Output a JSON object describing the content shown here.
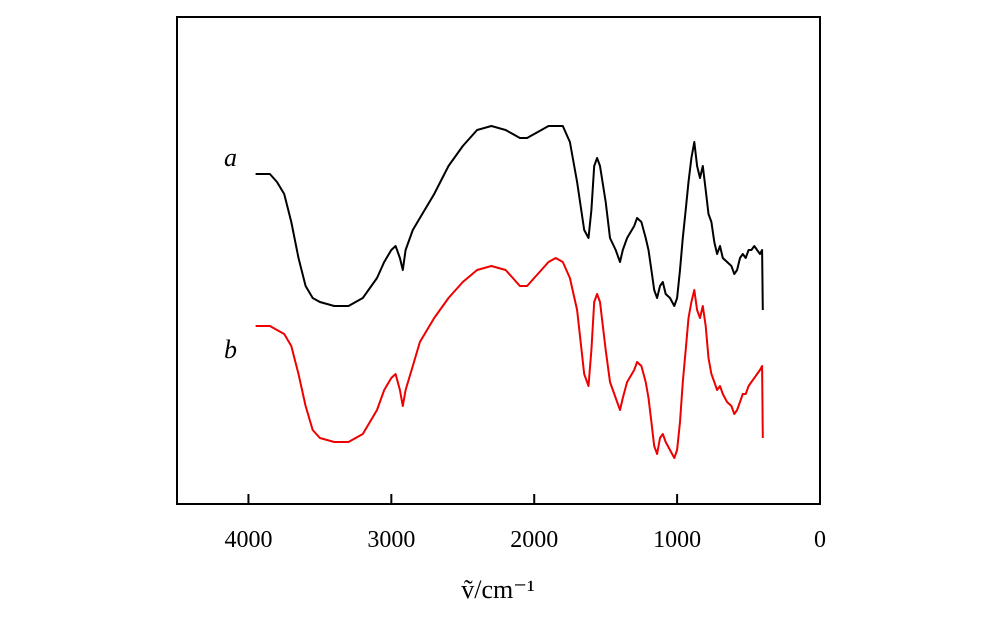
{
  "chart_data": {
    "type": "line",
    "title": "",
    "xlabel": "ṽ/cm⁻¹",
    "ylabel": "",
    "xlim": [
      4500,
      0
    ],
    "ylim": [
      0,
      1
    ],
    "x_reversed": true,
    "y_ticks_shown": false,
    "x_ticks": [
      {
        "value": 4000,
        "label": "4000"
      },
      {
        "value": 3000,
        "label": "3000"
      },
      {
        "value": 2000,
        "label": "2000"
      },
      {
        "value": 1000,
        "label": "1000"
      },
      {
        "value": 0,
        "label": "0"
      }
    ],
    "series": [
      {
        "name": "a",
        "color": "#000000",
        "points": [
          [
            3950,
            0.74
          ],
          [
            3850,
            0.74
          ],
          [
            3800,
            0.72
          ],
          [
            3750,
            0.69
          ],
          [
            3700,
            0.62
          ],
          [
            3650,
            0.53
          ],
          [
            3600,
            0.46
          ],
          [
            3550,
            0.43
          ],
          [
            3500,
            0.42
          ],
          [
            3400,
            0.41
          ],
          [
            3300,
            0.41
          ],
          [
            3200,
            0.43
          ],
          [
            3100,
            0.48
          ],
          [
            3050,
            0.52
          ],
          [
            3000,
            0.55
          ],
          [
            2970,
            0.56
          ],
          [
            2940,
            0.53
          ],
          [
            2920,
            0.5
          ],
          [
            2900,
            0.55
          ],
          [
            2850,
            0.6
          ],
          [
            2800,
            0.63
          ],
          [
            2700,
            0.69
          ],
          [
            2600,
            0.76
          ],
          [
            2500,
            0.81
          ],
          [
            2400,
            0.85
          ],
          [
            2300,
            0.86
          ],
          [
            2200,
            0.85
          ],
          [
            2150,
            0.84
          ],
          [
            2100,
            0.83
          ],
          [
            2050,
            0.83
          ],
          [
            2000,
            0.84
          ],
          [
            1950,
            0.85
          ],
          [
            1900,
            0.86
          ],
          [
            1850,
            0.86
          ],
          [
            1800,
            0.86
          ],
          [
            1750,
            0.82
          ],
          [
            1700,
            0.72
          ],
          [
            1650,
            0.6
          ],
          [
            1620,
            0.58
          ],
          [
            1600,
            0.65
          ],
          [
            1580,
            0.76
          ],
          [
            1560,
            0.78
          ],
          [
            1540,
            0.76
          ],
          [
            1500,
            0.67
          ],
          [
            1470,
            0.58
          ],
          [
            1430,
            0.55
          ],
          [
            1400,
            0.52
          ],
          [
            1380,
            0.55
          ],
          [
            1350,
            0.58
          ],
          [
            1300,
            0.61
          ],
          [
            1280,
            0.63
          ],
          [
            1250,
            0.62
          ],
          [
            1220,
            0.58
          ],
          [
            1200,
            0.55
          ],
          [
            1180,
            0.5
          ],
          [
            1160,
            0.45
          ],
          [
            1140,
            0.43
          ],
          [
            1120,
            0.46
          ],
          [
            1100,
            0.47
          ],
          [
            1080,
            0.44
          ],
          [
            1050,
            0.43
          ],
          [
            1020,
            0.41
          ],
          [
            1000,
            0.43
          ],
          [
            980,
            0.5
          ],
          [
            960,
            0.58
          ],
          [
            940,
            0.65
          ],
          [
            920,
            0.72
          ],
          [
            900,
            0.78
          ],
          [
            880,
            0.82
          ],
          [
            860,
            0.76
          ],
          [
            840,
            0.73
          ],
          [
            820,
            0.76
          ],
          [
            800,
            0.7
          ],
          [
            780,
            0.64
          ],
          [
            760,
            0.62
          ],
          [
            740,
            0.57
          ],
          [
            720,
            0.54
          ],
          [
            700,
            0.56
          ],
          [
            680,
            0.53
          ],
          [
            650,
            0.52
          ],
          [
            620,
            0.51
          ],
          [
            600,
            0.49
          ],
          [
            580,
            0.5
          ],
          [
            560,
            0.53
          ],
          [
            540,
            0.54
          ],
          [
            520,
            0.53
          ],
          [
            500,
            0.55
          ],
          [
            480,
            0.55
          ],
          [
            460,
            0.56
          ],
          [
            440,
            0.55
          ],
          [
            420,
            0.54
          ],
          [
            405,
            0.55
          ],
          [
            400,
            0.4
          ]
        ]
      },
      {
        "name": "b",
        "color": "#ee0000",
        "points": [
          [
            3950,
            0.36
          ],
          [
            3850,
            0.36
          ],
          [
            3800,
            0.35
          ],
          [
            3750,
            0.34
          ],
          [
            3700,
            0.31
          ],
          [
            3650,
            0.24
          ],
          [
            3600,
            0.16
          ],
          [
            3550,
            0.1
          ],
          [
            3500,
            0.08
          ],
          [
            3400,
            0.07
          ],
          [
            3300,
            0.07
          ],
          [
            3200,
            0.09
          ],
          [
            3100,
            0.15
          ],
          [
            3050,
            0.2
          ],
          [
            3000,
            0.23
          ],
          [
            2970,
            0.24
          ],
          [
            2940,
            0.2
          ],
          [
            2920,
            0.16
          ],
          [
            2900,
            0.2
          ],
          [
            2850,
            0.26
          ],
          [
            2800,
            0.32
          ],
          [
            2700,
            0.38
          ],
          [
            2600,
            0.43
          ],
          [
            2500,
            0.47
          ],
          [
            2400,
            0.5
          ],
          [
            2300,
            0.51
          ],
          [
            2200,
            0.5
          ],
          [
            2150,
            0.48
          ],
          [
            2100,
            0.46
          ],
          [
            2050,
            0.46
          ],
          [
            2000,
            0.48
          ],
          [
            1950,
            0.5
          ],
          [
            1900,
            0.52
          ],
          [
            1850,
            0.53
          ],
          [
            1800,
            0.52
          ],
          [
            1750,
            0.48
          ],
          [
            1700,
            0.4
          ],
          [
            1650,
            0.24
          ],
          [
            1620,
            0.21
          ],
          [
            1600,
            0.3
          ],
          [
            1580,
            0.42
          ],
          [
            1560,
            0.44
          ],
          [
            1540,
            0.42
          ],
          [
            1500,
            0.3
          ],
          [
            1470,
            0.22
          ],
          [
            1430,
            0.18
          ],
          [
            1400,
            0.15
          ],
          [
            1380,
            0.18
          ],
          [
            1350,
            0.22
          ],
          [
            1300,
            0.25
          ],
          [
            1280,
            0.27
          ],
          [
            1250,
            0.26
          ],
          [
            1220,
            0.22
          ],
          [
            1200,
            0.18
          ],
          [
            1180,
            0.12
          ],
          [
            1160,
            0.06
          ],
          [
            1140,
            0.04
          ],
          [
            1120,
            0.08
          ],
          [
            1100,
            0.09
          ],
          [
            1080,
            0.07
          ],
          [
            1050,
            0.05
          ],
          [
            1020,
            0.03
          ],
          [
            1000,
            0.05
          ],
          [
            980,
            0.12
          ],
          [
            960,
            0.22
          ],
          [
            940,
            0.3
          ],
          [
            920,
            0.38
          ],
          [
            900,
            0.42
          ],
          [
            880,
            0.45
          ],
          [
            860,
            0.4
          ],
          [
            840,
            0.38
          ],
          [
            820,
            0.41
          ],
          [
            800,
            0.36
          ],
          [
            780,
            0.28
          ],
          [
            760,
            0.24
          ],
          [
            740,
            0.22
          ],
          [
            720,
            0.2
          ],
          [
            700,
            0.21
          ],
          [
            680,
            0.19
          ],
          [
            650,
            0.17
          ],
          [
            620,
            0.16
          ],
          [
            600,
            0.14
          ],
          [
            580,
            0.15
          ],
          [
            560,
            0.17
          ],
          [
            540,
            0.19
          ],
          [
            520,
            0.19
          ],
          [
            500,
            0.21
          ],
          [
            480,
            0.22
          ],
          [
            460,
            0.23
          ],
          [
            440,
            0.24
          ],
          [
            420,
            0.25
          ],
          [
            405,
            0.26
          ],
          [
            400,
            0.08
          ]
        ]
      }
    ]
  }
}
